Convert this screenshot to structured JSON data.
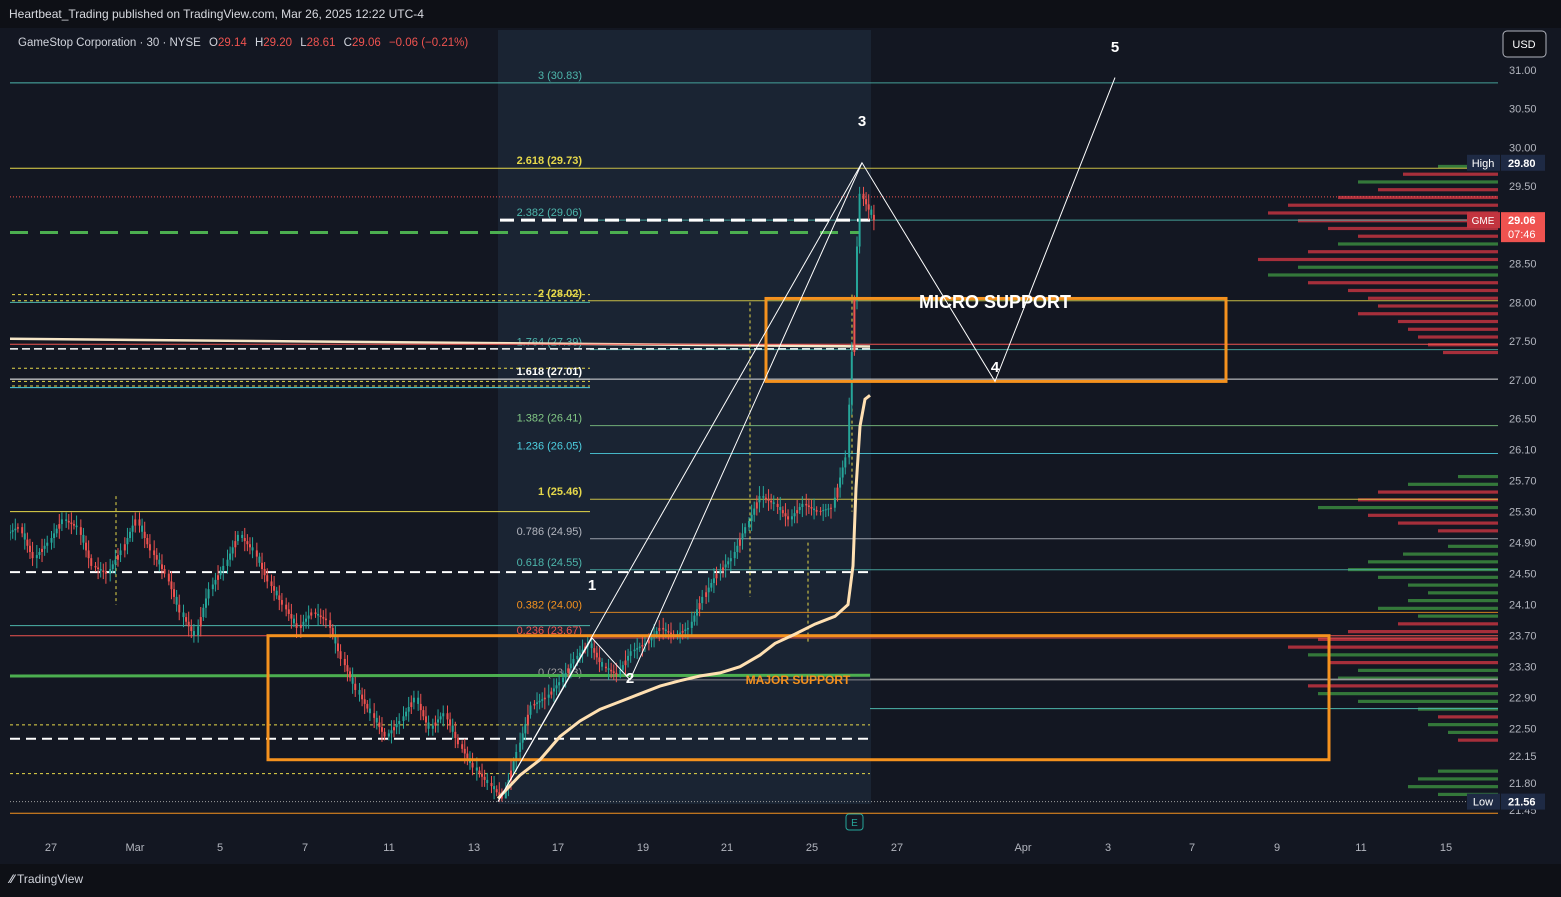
{
  "publisher_line": "Heartbeat_Trading published on TradingView.com, Mar 26, 2025 12:22 UTC-4",
  "symbol_info": {
    "name": "GameStop Corporation · 30 · NYSE",
    "o_label": "O",
    "o": "29.14",
    "h_label": "H",
    "h": "29.20",
    "l_label": "L",
    "l": "28.61",
    "c_label": "C",
    "c": "29.06",
    "change": "−0.06 (−0.21%)"
  },
  "currency_button": "USD",
  "brand": "TradingView",
  "colors": {
    "background": "#131722",
    "candle_up": "#26a69a",
    "candle_down": "#ef5350",
    "fib_yellow": "#e6d84a",
    "fib_teal": "#4db6ac",
    "orange_box": "#f5921e",
    "white_line": "#ffffff",
    "green_support": "#4caf50",
    "vwap": "#ffe0b2"
  },
  "chart_data": {
    "type": "candlestick",
    "symbol": "GME",
    "timeframe": "30",
    "y_ticks": [
      "31.00",
      "30.50",
      "30.00",
      "29.50",
      "28.50",
      "28.00",
      "27.50",
      "27.00",
      "26.50",
      "26.10",
      "25.70",
      "25.30",
      "24.90",
      "24.50",
      "24.10",
      "23.70",
      "23.30",
      "22.90",
      "22.50",
      "22.15",
      "21.80",
      "21.45"
    ],
    "x_ticks": [
      "27",
      "Mar",
      "5",
      "7",
      "11",
      "13",
      "17",
      "19",
      "21",
      "25",
      "27",
      "Apr",
      "3",
      "7",
      "9",
      "11",
      "15"
    ],
    "price_markers": [
      {
        "label": "High",
        "value": "29.80"
      },
      {
        "label": "GME",
        "value": "29.06",
        "countdown": "07:46"
      },
      {
        "label": "Low",
        "value": "21.56"
      }
    ],
    "fib_levels": [
      {
        "label": "3 (30.83)",
        "value": 30.83
      },
      {
        "label": "2.618 (29.73)",
        "value": 29.73
      },
      {
        "label": "2.382 (29.06)",
        "value": 29.06
      },
      {
        "label": "2 (28.02)",
        "value": 28.02
      },
      {
        "label": "1.764 (27.39)",
        "value": 27.39
      },
      {
        "label": "1.618 (27.01)",
        "value": 27.01
      },
      {
        "label": "1.382 (26.41)",
        "value": 26.41
      },
      {
        "label": "1.236 (26.05)",
        "value": 26.05
      },
      {
        "label": "1 (25.46)",
        "value": 25.46
      },
      {
        "label": "0.786 (24.95)",
        "value": 24.95
      },
      {
        "label": "0.618 (24.55)",
        "value": 24.55
      },
      {
        "label": "0.382 (24.00)",
        "value": 24.0
      },
      {
        "label": "0.236 (23.67)",
        "value": 23.67
      },
      {
        "label": "0 (23.13)",
        "value": 23.13
      }
    ],
    "wave_labels": [
      "1",
      "2",
      "3",
      "4",
      "5"
    ],
    "zones": [
      {
        "label": "MICRO SUPPORT",
        "top": 28.05,
        "bottom": 26.98
      },
      {
        "label": "MAJOR SUPPORT",
        "top": 23.7,
        "bottom": 22.1
      }
    ],
    "ohlc_path": [
      [
        25.0,
        25.3,
        24.8,
        25.1
      ],
      [
        25.1,
        25.2,
        24.6,
        24.7
      ],
      [
        24.7,
        25.0,
        24.5,
        24.9
      ],
      [
        24.9,
        25.3,
        24.8,
        25.2
      ],
      [
        25.2,
        25.4,
        25.0,
        25.1
      ],
      [
        25.1,
        25.2,
        24.5,
        24.6
      ],
      [
        24.6,
        24.8,
        24.3,
        24.5
      ],
      [
        24.5,
        24.9,
        24.4,
        24.8
      ],
      [
        24.8,
        25.4,
        24.7,
        25.2
      ],
      [
        25.2,
        25.3,
        24.7,
        24.8
      ],
      [
        24.8,
        25.0,
        24.4,
        24.5
      ],
      [
        24.5,
        24.6,
        23.9,
        24.0
      ],
      [
        24.0,
        24.1,
        23.4,
        23.7
      ],
      [
        23.7,
        24.5,
        23.6,
        24.3
      ],
      [
        24.3,
        24.7,
        24.2,
        24.6
      ],
      [
        24.6,
        25.1,
        24.5,
        25.0
      ],
      [
        25.0,
        25.2,
        24.7,
        24.8
      ],
      [
        24.8,
        24.9,
        24.3,
        24.4
      ],
      [
        24.4,
        24.5,
        24.0,
        24.1
      ],
      [
        24.1,
        24.2,
        23.6,
        23.8
      ],
      [
        23.8,
        24.1,
        23.5,
        24.0
      ],
      [
        24.0,
        24.2,
        23.8,
        23.9
      ],
      [
        23.9,
        24.0,
        23.3,
        23.4
      ],
      [
        23.4,
        23.5,
        22.9,
        23.0
      ],
      [
        23.0,
        23.2,
        22.6,
        22.7
      ],
      [
        22.7,
        22.9,
        22.3,
        22.4
      ],
      [
        22.4,
        22.7,
        22.2,
        22.6
      ],
      [
        22.6,
        23.0,
        22.5,
        22.9
      ],
      [
        22.9,
        23.1,
        22.4,
        22.5
      ],
      [
        22.5,
        22.8,
        22.3,
        22.7
      ],
      [
        22.7,
        22.8,
        22.2,
        22.3
      ],
      [
        22.3,
        22.4,
        21.9,
        22.0
      ],
      [
        22.0,
        22.2,
        21.7,
        21.8
      ],
      [
        21.8,
        21.9,
        21.56,
        21.6
      ],
      [
        21.6,
        22.3,
        21.6,
        22.2
      ],
      [
        22.2,
        22.9,
        22.1,
        22.8
      ],
      [
        22.8,
        23.1,
        22.7,
        22.9
      ],
      [
        22.9,
        23.2,
        22.8,
        23.1
      ],
      [
        23.1,
        23.5,
        23.0,
        23.4
      ],
      [
        23.4,
        23.7,
        23.3,
        23.6
      ],
      [
        23.6,
        23.7,
        23.2,
        23.3
      ],
      [
        23.3,
        23.4,
        23.1,
        23.2
      ],
      [
        23.2,
        23.6,
        23.15,
        23.5
      ],
      [
        23.5,
        23.8,
        23.4,
        23.6
      ],
      [
        23.6,
        23.9,
        23.5,
        23.8
      ],
      [
        23.8,
        24.0,
        23.6,
        23.7
      ],
      [
        23.7,
        23.9,
        23.6,
        23.8
      ],
      [
        23.8,
        24.3,
        23.7,
        24.2
      ],
      [
        24.2,
        24.6,
        24.1,
        24.5
      ],
      [
        24.5,
        24.8,
        24.4,
        24.7
      ],
      [
        24.7,
        25.2,
        24.6,
        25.1
      ],
      [
        25.1,
        25.7,
        25.0,
        25.5
      ],
      [
        25.5,
        25.8,
        25.3,
        25.4
      ],
      [
        25.4,
        25.6,
        25.1,
        25.2
      ],
      [
        25.2,
        25.5,
        25.0,
        25.4
      ],
      [
        25.4,
        25.6,
        25.2,
        25.3
      ],
      [
        25.3,
        25.4,
        25.1,
        25.35
      ],
      [
        25.35,
        26.2,
        25.3,
        26.0
      ],
      [
        26.0,
        29.8,
        25.9,
        29.4
      ],
      [
        29.4,
        29.5,
        28.6,
        29.06
      ]
    ],
    "y_axis_range": [
      21.4,
      31.1
    ]
  },
  "annotations": {
    "micro_support": "MICRO SUPPORT",
    "major_support": "MAJOR SUPPORT",
    "earnings_badge": "E"
  }
}
